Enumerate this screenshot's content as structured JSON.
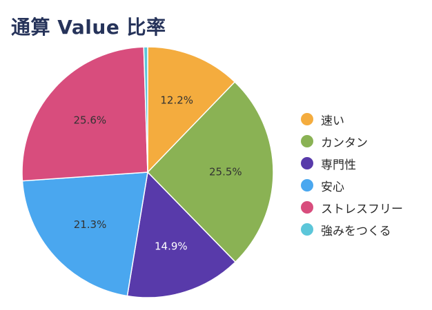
{
  "chart_data": {
    "type": "pie",
    "title": "通算 Value 比率",
    "legend_position": "right",
    "categories": [
      "速い",
      "カンタン",
      "専門性",
      "安心",
      "ストレスフリー",
      "強みをつくる"
    ],
    "values": [
      12.2,
      25.5,
      14.9,
      21.3,
      25.6,
      0.5
    ],
    "labels": [
      "12.2%",
      "25.5%",
      "14.9%",
      "21.3%",
      "25.6%",
      ""
    ],
    "colors": [
      "#f4ac3e",
      "#8ab254",
      "#583aaa",
      "#4aa7ef",
      "#d84d7d",
      "#5cc6d9"
    ]
  }
}
